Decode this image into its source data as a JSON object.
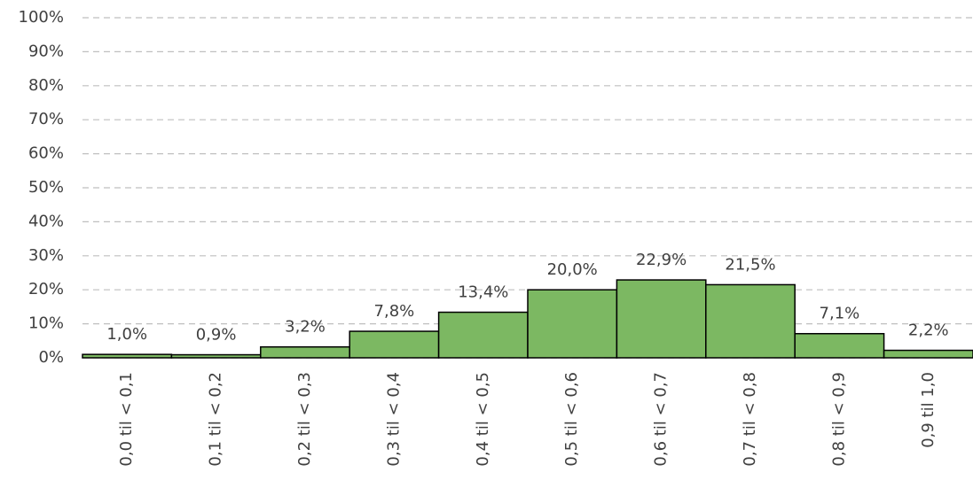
{
  "chart_data": {
    "type": "bar",
    "categories": [
      "0,0 til < 0,1",
      "0,1 til < 0,2",
      "0,2 til < 0,3",
      "0,3 til < 0,4",
      "0,4 til < 0,5",
      "0,5 til < 0,6",
      "0,6 til < 0,7",
      "0,7 til < 0,8",
      "0,8 til < 0,9",
      "0,9 til 1,0"
    ],
    "values": [
      1.0,
      0.9,
      3.2,
      7.8,
      13.4,
      20.0,
      22.9,
      21.5,
      7.1,
      2.2
    ],
    "value_labels": [
      "1,0%",
      "0,9%",
      "3,2%",
      "7,8%",
      "13,4%",
      "20,0%",
      "22,9%",
      "21,5%",
      "7,1%",
      "2,2%"
    ],
    "color": "#7cb862",
    "ylim": [
      0,
      100
    ],
    "yticks": [
      {
        "value": 0,
        "label": "0%"
      },
      {
        "value": 10,
        "label": "10%"
      },
      {
        "value": 20,
        "label": "20%"
      },
      {
        "value": 30,
        "label": "30%"
      },
      {
        "value": 40,
        "label": "40%"
      },
      {
        "value": 50,
        "label": "50%"
      },
      {
        "value": 60,
        "label": "60%"
      },
      {
        "value": 70,
        "label": "70%"
      },
      {
        "value": 80,
        "label": "80%"
      },
      {
        "value": 90,
        "label": "90%"
      },
      {
        "value": 100,
        "label": "100%"
      }
    ],
    "grid": true
  }
}
